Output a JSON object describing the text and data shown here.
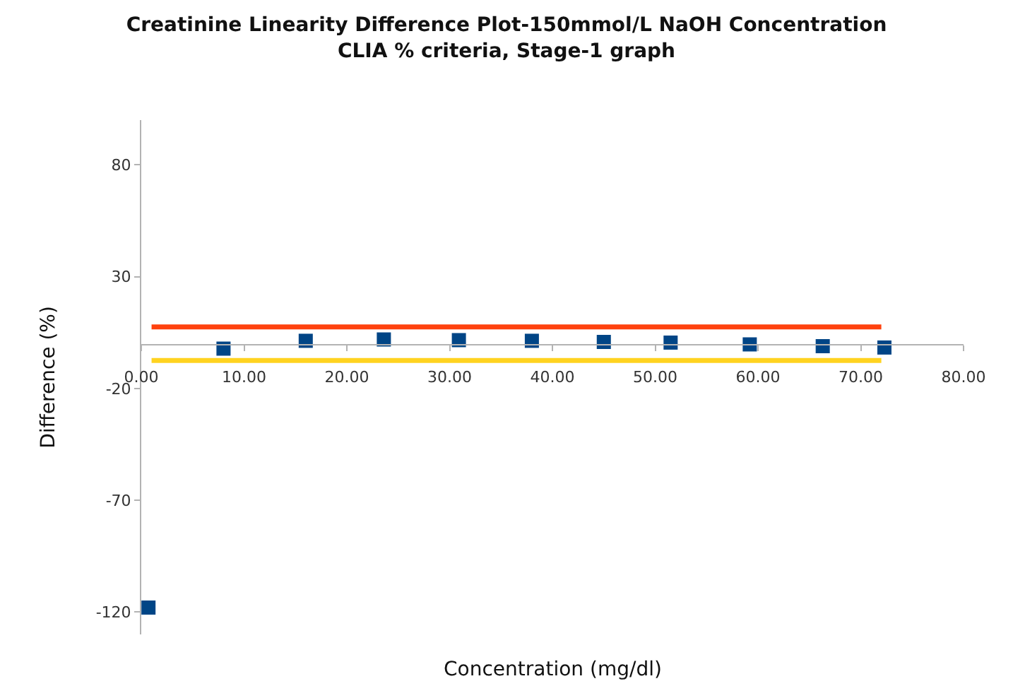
{
  "chart_data": {
    "type": "scatter",
    "title": "Creatinine Linearity Difference Plot-150mmol/L NaOH Concentration\nCLIA % criteria, Stage-1 graph",
    "xlabel": "Concentration (mg/dl)",
    "ylabel": "Difference (%)",
    "series": [
      {
        "color": "#004586",
        "marker": "square",
        "x": [
          0.7,
          8.0,
          16.0,
          23.6,
          30.9,
          38.0,
          45.0,
          51.5,
          59.2,
          66.3,
          72.3
        ],
        "values": [
          -118,
          -2.2,
          1.3,
          1.9,
          1.6,
          1.3,
          0.8,
          0.5,
          -0.3,
          -1.1,
          -1.7
        ]
      },
      {
        "type": "line",
        "color": "#ff420e",
        "line_style": "solid",
        "marker": "none",
        "x": [
          1,
          72
        ],
        "values": [
          7.5,
          7.5
        ]
      },
      {
        "type": "line",
        "color": "#ffd320",
        "line_style": "solid",
        "marker": "none",
        "x": [
          1,
          72
        ],
        "values": [
          -7.5,
          -7.5
        ]
      }
    ],
    "xlim": [
      0,
      80
    ],
    "xticks": [
      {
        "value": 0,
        "label": "0.00"
      },
      {
        "value": 10,
        "label": "10.00"
      },
      {
        "value": 20,
        "label": "20.00"
      },
      {
        "value": 30,
        "label": "30.00"
      },
      {
        "value": 40,
        "label": "40.00"
      },
      {
        "value": 50,
        "label": "50.00"
      },
      {
        "value": 60,
        "label": "60.00"
      },
      {
        "value": 70,
        "label": "70.00"
      },
      {
        "value": 80,
        "label": "80.00"
      }
    ],
    "ylim": [
      -130,
      100
    ],
    "yticks": [
      -120,
      -70,
      -20,
      30,
      80
    ]
  }
}
